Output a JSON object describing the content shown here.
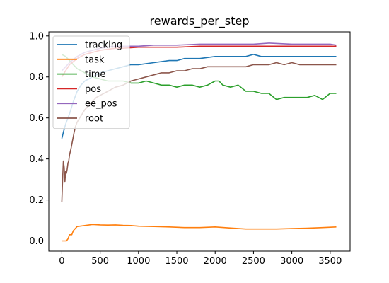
{
  "chart_data": {
    "type": "line",
    "title": "rewards_per_step",
    "xlabel": "",
    "ylabel": "",
    "xlim": [
      -170,
      3760
    ],
    "ylim": [
      -0.05,
      1.02
    ],
    "xticks": [
      0,
      500,
      1000,
      1500,
      2000,
      2500,
      3000,
      3500
    ],
    "yticks": [
      0.0,
      0.2,
      0.4,
      0.6,
      0.8,
      1.0
    ],
    "xtick_labels": [
      "0",
      "500",
      "1000",
      "1500",
      "2000",
      "2500",
      "3000",
      "3500"
    ],
    "ytick_labels": [
      "0.0",
      "0.2",
      "0.4",
      "0.6",
      "0.8",
      "1.0"
    ],
    "grid": false,
    "legend_position": "upper-left",
    "series": [
      {
        "name": "tracking",
        "color": "#1f77b4",
        "x": [
          0,
          20,
          50,
          100,
          150,
          200,
          250,
          300,
          400,
          500,
          600,
          700,
          800,
          900,
          1000,
          1200,
          1400,
          1500,
          1600,
          1800,
          2000,
          2200,
          2400,
          2500,
          2600,
          2800,
          3000,
          3200,
          3400,
          3580
        ],
        "y": [
          0.5,
          0.53,
          0.57,
          0.62,
          0.68,
          0.73,
          0.76,
          0.78,
          0.8,
          0.82,
          0.83,
          0.84,
          0.85,
          0.86,
          0.86,
          0.87,
          0.88,
          0.88,
          0.89,
          0.89,
          0.9,
          0.9,
          0.9,
          0.91,
          0.9,
          0.9,
          0.9,
          0.9,
          0.9,
          0.9
        ]
      },
      {
        "name": "task",
        "color": "#ff7f0e",
        "x": [
          0,
          30,
          60,
          80,
          100,
          130,
          150,
          200,
          300,
          400,
          500,
          600,
          700,
          800,
          900,
          1000,
          1200,
          1400,
          1600,
          1800,
          2000,
          2200,
          2400,
          2600,
          2800,
          3000,
          3200,
          3400,
          3580
        ],
        "y": [
          0.0,
          0.0,
          0.0,
          0.01,
          0.03,
          0.03,
          0.05,
          0.07,
          0.075,
          0.08,
          0.078,
          0.077,
          0.078,
          0.076,
          0.075,
          0.072,
          0.07,
          0.068,
          0.065,
          0.065,
          0.068,
          0.063,
          0.058,
          0.058,
          0.058,
          0.06,
          0.062,
          0.065,
          0.068
        ]
      },
      {
        "name": "time",
        "color": "#2ca02c",
        "x": [
          0,
          50,
          100,
          150,
          200,
          300,
          400,
          500,
          600,
          700,
          800,
          900,
          1000,
          1100,
          1200,
          1300,
          1400,
          1500,
          1600,
          1700,
          1800,
          1900,
          2000,
          2050,
          2100,
          2200,
          2300,
          2400,
          2500,
          2600,
          2700,
          2800,
          2900,
          3000,
          3100,
          3200,
          3300,
          3400,
          3500,
          3580
        ],
        "y": [
          0.91,
          0.9,
          0.88,
          0.86,
          0.84,
          0.82,
          0.8,
          0.79,
          0.78,
          0.78,
          0.78,
          0.77,
          0.77,
          0.78,
          0.77,
          0.76,
          0.76,
          0.75,
          0.76,
          0.76,
          0.75,
          0.76,
          0.78,
          0.78,
          0.76,
          0.75,
          0.76,
          0.73,
          0.73,
          0.72,
          0.72,
          0.69,
          0.7,
          0.7,
          0.7,
          0.7,
          0.71,
          0.69,
          0.72,
          0.72
        ]
      },
      {
        "name": "pos",
        "color": "#d62728",
        "x": [
          0,
          50,
          100,
          200,
          300,
          400,
          500,
          600,
          700,
          800,
          1000,
          1200,
          1500,
          1800,
          2000,
          2500,
          3000,
          3500,
          3580
        ],
        "y": [
          0.8,
          0.83,
          0.86,
          0.89,
          0.91,
          0.92,
          0.93,
          0.935,
          0.94,
          0.94,
          0.945,
          0.945,
          0.945,
          0.95,
          0.95,
          0.95,
          0.95,
          0.95,
          0.95
        ]
      },
      {
        "name": "ee_pos",
        "color": "#9467bd",
        "x": [
          0,
          50,
          100,
          200,
          300,
          400,
          500,
          600,
          700,
          800,
          1000,
          1200,
          1500,
          1800,
          2000,
          2500,
          2700,
          3000,
          3500,
          3580
        ],
        "y": [
          0.83,
          0.85,
          0.87,
          0.9,
          0.92,
          0.93,
          0.94,
          0.945,
          0.95,
          0.95,
          0.95,
          0.955,
          0.955,
          0.96,
          0.96,
          0.96,
          0.965,
          0.96,
          0.96,
          0.955
        ]
      },
      {
        "name": "root",
        "color": "#8c564b",
        "x": [
          0,
          10,
          20,
          30,
          40,
          50,
          60,
          70,
          80,
          90,
          100,
          120,
          140,
          160,
          180,
          200,
          250,
          300,
          350,
          400,
          450,
          500,
          600,
          700,
          800,
          900,
          1000,
          1100,
          1200,
          1300,
          1400,
          1500,
          1600,
          1700,
          1800,
          1900,
          2000,
          2100,
          2200,
          2300,
          2400,
          2500,
          2600,
          2700,
          2800,
          2900,
          3000,
          3100,
          3200,
          3300,
          3400,
          3500,
          3580
        ],
        "y": [
          0.19,
          0.3,
          0.39,
          0.36,
          0.29,
          0.34,
          0.33,
          0.35,
          0.38,
          0.39,
          0.42,
          0.45,
          0.49,
          0.53,
          0.56,
          0.58,
          0.61,
          0.64,
          0.66,
          0.68,
          0.7,
          0.71,
          0.73,
          0.75,
          0.76,
          0.78,
          0.79,
          0.8,
          0.81,
          0.82,
          0.82,
          0.83,
          0.83,
          0.84,
          0.84,
          0.85,
          0.85,
          0.85,
          0.85,
          0.85,
          0.85,
          0.86,
          0.86,
          0.86,
          0.87,
          0.86,
          0.87,
          0.86,
          0.86,
          0.86,
          0.86,
          0.86,
          0.86
        ]
      }
    ]
  }
}
